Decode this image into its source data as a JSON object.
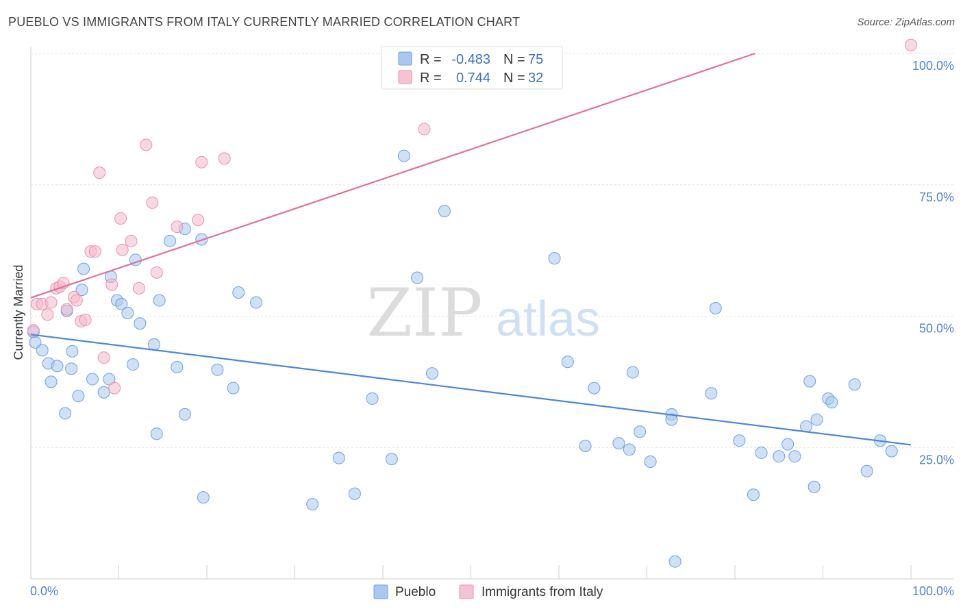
{
  "header": {
    "title": "PUEBLO VS IMMIGRANTS FROM ITALY CURRENTLY MARRIED CORRELATION CHART",
    "source": "Source: ZipAtlas.com"
  },
  "watermark": {
    "zip": "ZIP",
    "atlas": "atlas"
  },
  "legend": {
    "series": [
      {
        "r_label": "R = ",
        "r_value": "-0.483",
        "n_label": "N = ",
        "n_value": "75",
        "color": "#a8c8f0"
      },
      {
        "r_label": "R = ",
        "r_value": "0.744",
        "n_label": "N = ",
        "n_value": "32",
        "color": "#f5b8cb"
      }
    ]
  },
  "chart_data": {
    "type": "scatter",
    "title": "PUEBLO VS IMMIGRANTS FROM ITALY CURRENTLY MARRIED CORRELATION CHART",
    "xlabel": "",
    "ylabel": "Currently Married",
    "xlim": [
      0,
      100
    ],
    "ylim": [
      0,
      100
    ],
    "x_tick_labels": [
      "0.0%",
      "100.0%"
    ],
    "y_ticks": [
      25,
      50,
      75,
      100
    ],
    "y_tick_labels": [
      "25.0%",
      "50.0%",
      "75.0%",
      "100.0%"
    ],
    "grid": true,
    "legend_position": "top-center",
    "series": [
      {
        "name": "Pueblo",
        "color": "#4a86d8",
        "fill": "#a8c8f0",
        "trend": {
          "x": [
            0,
            100
          ],
          "y": [
            46.5,
            25.5
          ]
        },
        "points": [
          [
            0.5,
            45.0
          ],
          [
            0.3,
            47.0
          ],
          [
            1.3,
            43.5
          ],
          [
            2.0,
            41.0
          ],
          [
            2.3,
            37.5
          ],
          [
            3.0,
            40.5
          ],
          [
            4.1,
            51.0
          ],
          [
            3.9,
            31.5
          ],
          [
            4.6,
            40.0
          ],
          [
            4.7,
            43.3
          ],
          [
            5.4,
            34.8
          ],
          [
            5.8,
            55.0
          ],
          [
            6.0,
            59.0
          ],
          [
            7.0,
            38.0
          ],
          [
            8.3,
            35.5
          ],
          [
            8.9,
            38.0
          ],
          [
            9.1,
            57.5
          ],
          [
            9.8,
            53.0
          ],
          [
            10.3,
            52.3
          ],
          [
            11.0,
            50.6
          ],
          [
            11.6,
            40.8
          ],
          [
            11.9,
            60.7
          ],
          [
            12.4,
            48.6
          ],
          [
            14.0,
            44.6
          ],
          [
            14.3,
            27.6
          ],
          [
            14.6,
            53.0
          ],
          [
            15.8,
            64.3
          ],
          [
            16.6,
            40.3
          ],
          [
            17.5,
            66.6
          ],
          [
            17.5,
            31.3
          ],
          [
            19.4,
            64.6
          ],
          [
            19.6,
            15.5
          ],
          [
            21.2,
            39.8
          ],
          [
            23.0,
            36.3
          ],
          [
            23.6,
            54.5
          ],
          [
            25.6,
            52.6
          ],
          [
            32.0,
            14.2
          ],
          [
            35.0,
            23.0
          ],
          [
            36.8,
            16.2
          ],
          [
            38.8,
            34.3
          ],
          [
            41.0,
            22.8
          ],
          [
            42.4,
            80.5
          ],
          [
            43.9,
            57.3
          ],
          [
            45.6,
            39.1
          ],
          [
            47.0,
            70.0
          ],
          [
            59.5,
            61.0
          ],
          [
            61.0,
            41.3
          ],
          [
            63.0,
            25.3
          ],
          [
            64.0,
            36.3
          ],
          [
            66.8,
            25.8
          ],
          [
            68.0,
            24.6
          ],
          [
            68.4,
            39.3
          ],
          [
            69.2,
            28.0
          ],
          [
            70.4,
            22.3
          ],
          [
            72.8,
            31.3
          ],
          [
            72.8,
            30.3
          ],
          [
            73.2,
            3.3
          ],
          [
            77.3,
            35.3
          ],
          [
            77.8,
            51.5
          ],
          [
            80.5,
            26.3
          ],
          [
            82.1,
            16.0
          ],
          [
            83.0,
            24.0
          ],
          [
            85.0,
            23.3
          ],
          [
            86.0,
            25.6
          ],
          [
            86.8,
            23.3
          ],
          [
            88.1,
            29.0
          ],
          [
            88.5,
            37.6
          ],
          [
            89.0,
            17.5
          ],
          [
            89.3,
            30.3
          ],
          [
            90.6,
            34.3
          ],
          [
            91.0,
            33.6
          ],
          [
            93.6,
            37.0
          ],
          [
            95.0,
            20.5
          ],
          [
            96.5,
            26.3
          ],
          [
            97.8,
            24.3
          ]
        ]
      },
      {
        "name": "Immigrants from Italy",
        "color": "#e07098",
        "fill": "#f5b8cb",
        "trend": {
          "x": [
            0,
            82.3
          ],
          "y": [
            53.5,
            100
          ]
        },
        "points": [
          [
            0.3,
            47.3
          ],
          [
            0.7,
            52.3
          ],
          [
            1.3,
            52.3
          ],
          [
            1.9,
            50.3
          ],
          [
            2.3,
            52.6
          ],
          [
            2.9,
            55.3
          ],
          [
            3.3,
            55.6
          ],
          [
            3.7,
            56.3
          ],
          [
            4.1,
            51.3
          ],
          [
            4.9,
            53.6
          ],
          [
            5.2,
            53.0
          ],
          [
            5.7,
            49.0
          ],
          [
            6.2,
            49.3
          ],
          [
            6.8,
            62.3
          ],
          [
            7.3,
            62.3
          ],
          [
            7.8,
            77.3
          ],
          [
            8.3,
            42.1
          ],
          [
            9.2,
            56.0
          ],
          [
            9.5,
            36.3
          ],
          [
            10.2,
            68.6
          ],
          [
            10.4,
            62.6
          ],
          [
            11.4,
            64.3
          ],
          [
            12.3,
            55.3
          ],
          [
            13.1,
            82.6
          ],
          [
            13.8,
            71.6
          ],
          [
            14.3,
            58.3
          ],
          [
            16.6,
            67.0
          ],
          [
            19.0,
            68.3
          ],
          [
            19.4,
            79.3
          ],
          [
            22.0,
            80.0
          ],
          [
            44.7,
            85.6
          ],
          [
            100.0,
            101.6
          ]
        ]
      }
    ]
  },
  "bottom_legend": {
    "items": [
      "Pueblo",
      "Immigrants from Italy"
    ]
  }
}
